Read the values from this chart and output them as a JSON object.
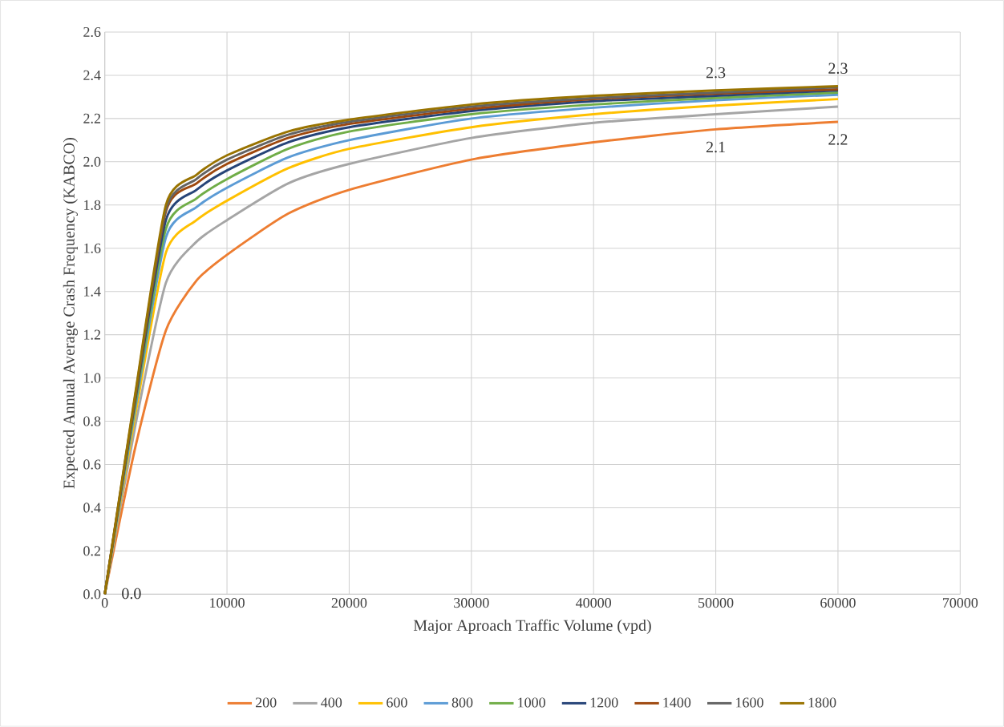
{
  "chart_data": {
    "type": "line",
    "xlabel": "Major Aproach Traffic Volume (vpd)",
    "ylabel": "Expected Annual Average  Crash Frequency (KABCO)",
    "x": [
      0,
      2500,
      5000,
      7500,
      10000,
      15000,
      20000,
      30000,
      40000,
      50000,
      60000
    ],
    "series": [
      {
        "name": "200",
        "color": "#ed7d31",
        "values": [
          0,
          0.68,
          1.22,
          1.45,
          1.57,
          1.76,
          1.87,
          2.01,
          2.09,
          2.15,
          2.185
        ]
      },
      {
        "name": "400",
        "color": "#a5a5a5",
        "values": [
          0,
          0.78,
          1.44,
          1.63,
          1.73,
          1.9,
          1.99,
          2.11,
          2.18,
          2.22,
          2.255
        ]
      },
      {
        "name": "600",
        "color": "#ffc000",
        "values": [
          0,
          0.83,
          1.58,
          1.73,
          1.82,
          1.97,
          2.06,
          2.16,
          2.22,
          2.26,
          2.29
        ]
      },
      {
        "name": "800",
        "color": "#5b9bd5",
        "values": [
          0,
          0.86,
          1.65,
          1.79,
          1.88,
          2.02,
          2.1,
          2.2,
          2.25,
          2.285,
          2.31
        ]
      },
      {
        "name": "1000",
        "color": "#70ad47",
        "values": [
          0,
          0.88,
          1.69,
          1.83,
          1.92,
          2.06,
          2.14,
          2.22,
          2.265,
          2.295,
          2.32
        ]
      },
      {
        "name": "1200",
        "color": "#264478",
        "values": [
          0,
          0.9,
          1.73,
          1.87,
          1.96,
          2.09,
          2.16,
          2.235,
          2.28,
          2.305,
          2.33
        ]
      },
      {
        "name": "1400",
        "color": "#9e480e",
        "values": [
          0,
          0.91,
          1.77,
          1.9,
          1.99,
          2.11,
          2.175,
          2.245,
          2.29,
          2.315,
          2.335
        ]
      },
      {
        "name": "1600",
        "color": "#636363",
        "values": [
          0,
          0.92,
          1.78,
          1.92,
          2.01,
          2.125,
          2.185,
          2.255,
          2.295,
          2.32,
          2.345
        ]
      },
      {
        "name": "1800",
        "color": "#997300",
        "values": [
          0,
          0.93,
          1.8,
          1.94,
          2.03,
          2.14,
          2.195,
          2.265,
          2.305,
          2.33,
          2.35
        ]
      }
    ],
    "annotations": [
      {
        "text": "0.0",
        "x": 0,
        "y": 0
      },
      {
        "text": "2.1",
        "x": 50000,
        "y": 2.15
      },
      {
        "text": "2.2",
        "x": 60000,
        "y": 2.185
      },
      {
        "text": "2.3",
        "x": 50000,
        "y": 2.33
      },
      {
        "text": "2.3",
        "x": 60000,
        "y": 2.35
      }
    ],
    "xlim": [
      0,
      70000
    ],
    "xticks": [
      0,
      10000,
      20000,
      30000,
      40000,
      50000,
      60000,
      70000
    ],
    "ylim": [
      0,
      2.6
    ],
    "yticks": [
      {
        "value": 0,
        "label": "0.0"
      },
      {
        "value": 0.2,
        "label": "0.2"
      },
      {
        "value": 0.4,
        "label": "0.4"
      },
      {
        "value": 0.6,
        "label": "0.6"
      },
      {
        "value": 0.8,
        "label": "0.8"
      },
      {
        "value": 1.0,
        "label": "1.0"
      },
      {
        "value": 1.2,
        "label": "1.2"
      },
      {
        "value": 1.4,
        "label": "1.4"
      },
      {
        "value": 1.6,
        "label": "1.6"
      },
      {
        "value": 1.8,
        "label": "1.8"
      },
      {
        "value": 2.0,
        "label": "2.0"
      },
      {
        "value": 2.2,
        "label": "2.2"
      },
      {
        "value": 2.4,
        "label": "2.4"
      },
      {
        "value": 2.6,
        "label": "2.6"
      }
    ],
    "grid": true,
    "legend": "bottom",
    "marker": "none",
    "line_style": "solid"
  }
}
